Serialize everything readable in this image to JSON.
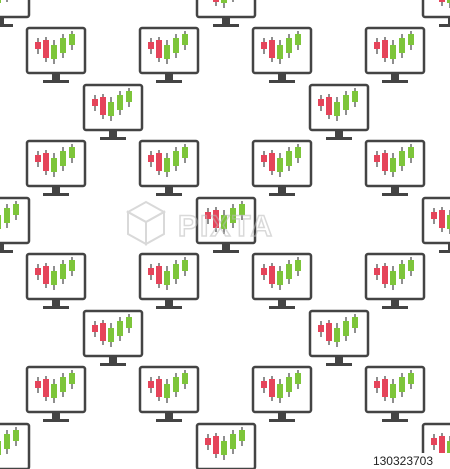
{
  "watermark": {
    "brand": "PIXTA",
    "id": "130323703"
  }
}
